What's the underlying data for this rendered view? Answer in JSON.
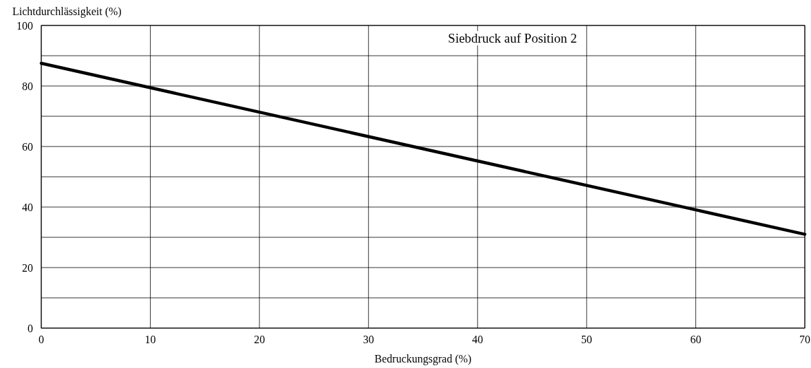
{
  "chart_data": {
    "type": "line",
    "title": "Siebdruck auf Position 2",
    "xlabel": "Bedruckungsgrad (%)",
    "ylabel": "Lichtdurchlässigkeit (%)",
    "x": [
      0,
      70
    ],
    "series": [
      {
        "color": "#000000",
        "values": [
          87.5,
          31
        ]
      }
    ],
    "xlim": [
      0,
      70
    ],
    "xticks": [
      0,
      10,
      20,
      30,
      40,
      50,
      60,
      70
    ],
    "ylim": [
      0,
      100
    ],
    "yticks": [
      0,
      {
        "value": 10,
        "label": null
      },
      20,
      {
        "value": 30,
        "label": null
      },
      40,
      {
        "value": 50,
        "label": null
      },
      60,
      {
        "value": 70,
        "label": null
      },
      80,
      {
        "value": 90,
        "label": null
      },
      100
    ],
    "grid": true,
    "marker": "none",
    "line_style": "solid"
  }
}
